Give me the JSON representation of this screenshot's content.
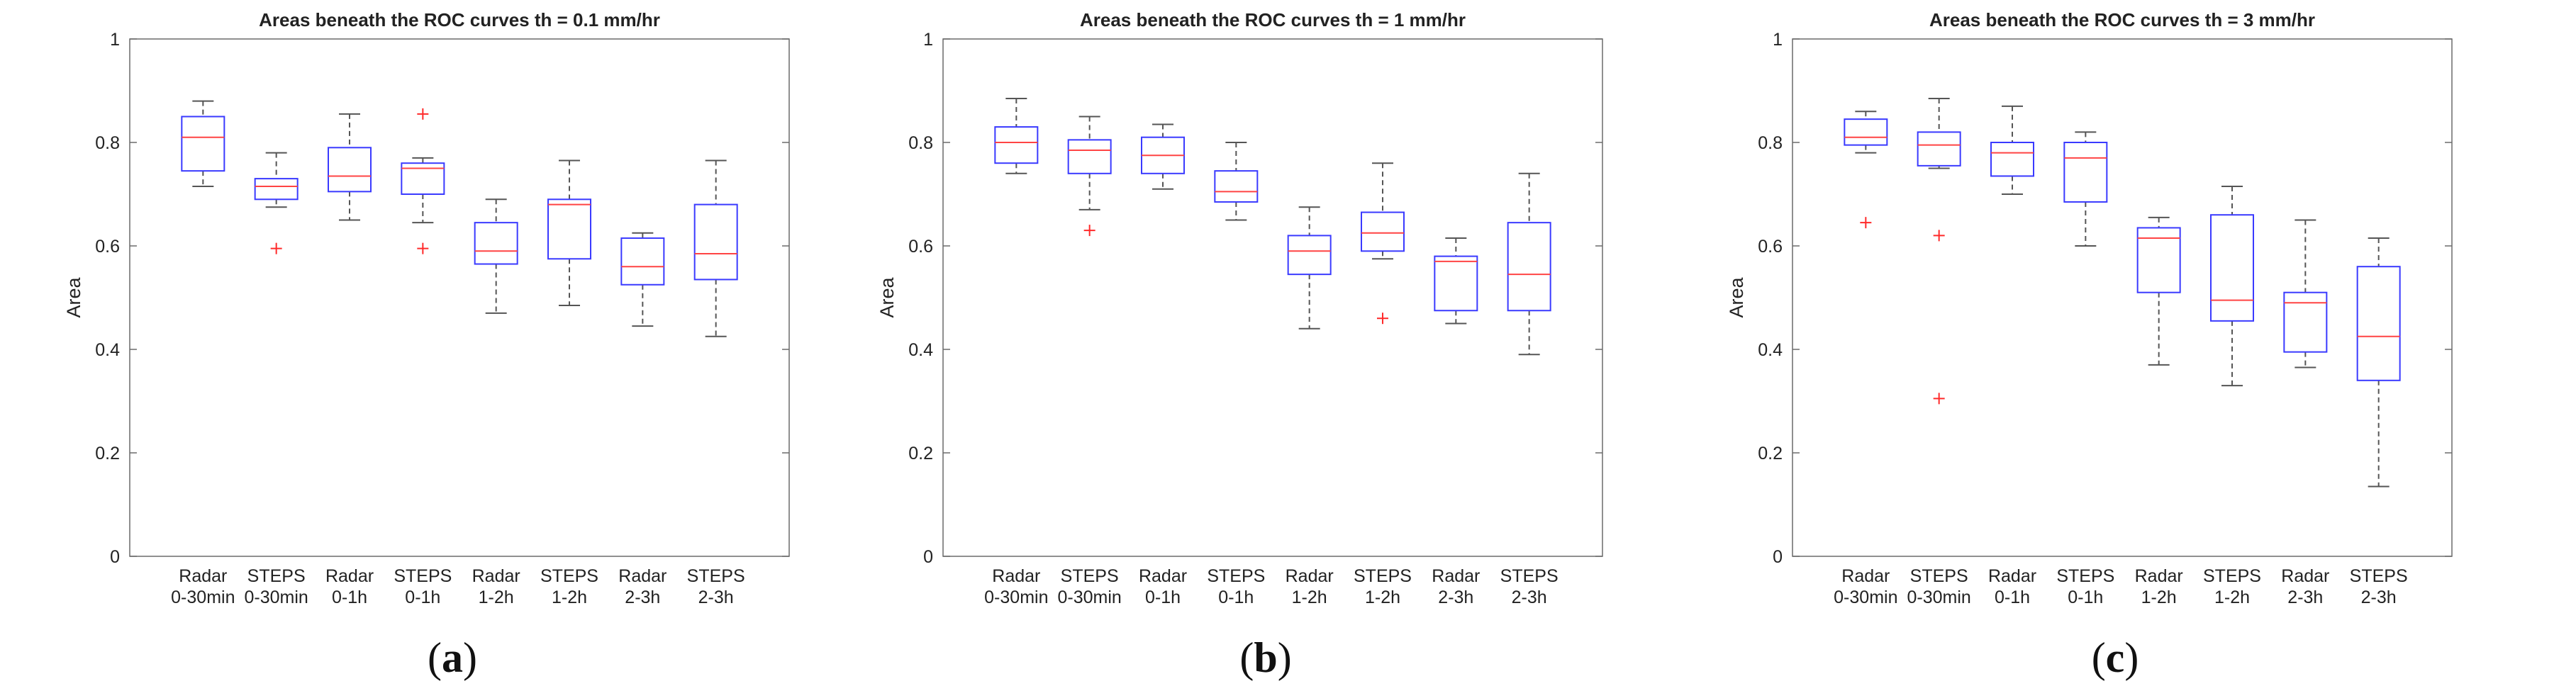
{
  "chart_data": [
    {
      "type": "boxplot",
      "panel_label": "a",
      "title": "Areas beneath the ROC curves th = 0.1 mm/hr",
      "ylabel": "Area",
      "ylim": [
        0,
        1
      ],
      "yticks": [
        "0",
        "0.2",
        "0.4",
        "0.6",
        "0.8",
        "1"
      ],
      "categories": [
        [
          "Radar",
          "0-30min"
        ],
        [
          "STEPS",
          "0-30min"
        ],
        [
          "Radar",
          "0-1h"
        ],
        [
          "STEPS",
          "0-1h"
        ],
        [
          "Radar",
          "1-2h"
        ],
        [
          "STEPS",
          "1-2h"
        ],
        [
          "Radar",
          "2-3h"
        ],
        [
          "STEPS",
          "2-3h"
        ]
      ],
      "boxes": [
        {
          "whisker_low": 0.715,
          "q1": 0.745,
          "median": 0.81,
          "q3": 0.85,
          "whisker_high": 0.88,
          "outliers": []
        },
        {
          "whisker_low": 0.675,
          "q1": 0.69,
          "median": 0.715,
          "q3": 0.73,
          "whisker_high": 0.78,
          "outliers": [
            0.595
          ]
        },
        {
          "whisker_low": 0.65,
          "q1": 0.705,
          "median": 0.735,
          "q3": 0.79,
          "whisker_high": 0.855,
          "outliers": []
        },
        {
          "whisker_low": 0.645,
          "q1": 0.7,
          "median": 0.75,
          "q3": 0.76,
          "whisker_high": 0.77,
          "outliers": [
            0.855,
            0.595
          ]
        },
        {
          "whisker_low": 0.47,
          "q1": 0.565,
          "median": 0.59,
          "q3": 0.645,
          "whisker_high": 0.69,
          "outliers": []
        },
        {
          "whisker_low": 0.485,
          "q1": 0.575,
          "median": 0.68,
          "q3": 0.69,
          "whisker_high": 0.765,
          "outliers": []
        },
        {
          "whisker_low": 0.445,
          "q1": 0.525,
          "median": 0.56,
          "q3": 0.615,
          "whisker_high": 0.625,
          "outliers": []
        },
        {
          "whisker_low": 0.425,
          "q1": 0.535,
          "median": 0.585,
          "q3": 0.68,
          "whisker_high": 0.765,
          "outliers": []
        }
      ]
    },
    {
      "type": "boxplot",
      "panel_label": "b",
      "title": "Areas beneath the ROC curves th = 1 mm/hr",
      "ylabel": "Area",
      "ylim": [
        0,
        1
      ],
      "yticks": [
        "0",
        "0.2",
        "0.4",
        "0.6",
        "0.8",
        "1"
      ],
      "categories": [
        [
          "Radar",
          "0-30min"
        ],
        [
          "STEPS",
          "0-30min"
        ],
        [
          "Radar",
          "0-1h"
        ],
        [
          "STEPS",
          "0-1h"
        ],
        [
          "Radar",
          "1-2h"
        ],
        [
          "STEPS",
          "1-2h"
        ],
        [
          "Radar",
          "2-3h"
        ],
        [
          "STEPS",
          "2-3h"
        ]
      ],
      "boxes": [
        {
          "whisker_low": 0.74,
          "q1": 0.76,
          "median": 0.8,
          "q3": 0.83,
          "whisker_high": 0.885,
          "outliers": []
        },
        {
          "whisker_low": 0.67,
          "q1": 0.74,
          "median": 0.785,
          "q3": 0.805,
          "whisker_high": 0.85,
          "outliers": [
            0.63
          ]
        },
        {
          "whisker_low": 0.71,
          "q1": 0.74,
          "median": 0.775,
          "q3": 0.81,
          "whisker_high": 0.835,
          "outliers": []
        },
        {
          "whisker_low": 0.65,
          "q1": 0.685,
          "median": 0.705,
          "q3": 0.745,
          "whisker_high": 0.8,
          "outliers": []
        },
        {
          "whisker_low": 0.44,
          "q1": 0.545,
          "median": 0.59,
          "q3": 0.62,
          "whisker_high": 0.675,
          "outliers": []
        },
        {
          "whisker_low": 0.575,
          "q1": 0.59,
          "median": 0.625,
          "q3": 0.665,
          "whisker_high": 0.76,
          "outliers": [
            0.46
          ]
        },
        {
          "whisker_low": 0.45,
          "q1": 0.475,
          "median": 0.57,
          "q3": 0.58,
          "whisker_high": 0.615,
          "outliers": []
        },
        {
          "whisker_low": 0.39,
          "q1": 0.475,
          "median": 0.545,
          "q3": 0.645,
          "whisker_high": 0.74,
          "outliers": []
        }
      ]
    },
    {
      "type": "boxplot",
      "panel_label": "c",
      "title": "Areas beneath the ROC curves th = 3 mm/hr",
      "ylabel": "Area",
      "ylim": [
        0,
        1
      ],
      "yticks": [
        "0",
        "0.2",
        "0.4",
        "0.6",
        "0.8",
        "1"
      ],
      "categories": [
        [
          "Radar",
          "0-30min"
        ],
        [
          "STEPS",
          "0-30min"
        ],
        [
          "Radar",
          "0-1h"
        ],
        [
          "STEPS",
          "0-1h"
        ],
        [
          "Radar",
          "1-2h"
        ],
        [
          "STEPS",
          "1-2h"
        ],
        [
          "Radar",
          "2-3h"
        ],
        [
          "STEPS",
          "2-3h"
        ]
      ],
      "boxes": [
        {
          "whisker_low": 0.78,
          "q1": 0.795,
          "median": 0.81,
          "q3": 0.845,
          "whisker_high": 0.86,
          "outliers": [
            0.645
          ]
        },
        {
          "whisker_low": 0.75,
          "q1": 0.755,
          "median": 0.795,
          "q3": 0.82,
          "whisker_high": 0.885,
          "outliers": [
            0.62,
            0.305
          ]
        },
        {
          "whisker_low": 0.7,
          "q1": 0.735,
          "median": 0.78,
          "q3": 0.8,
          "whisker_high": 0.87,
          "outliers": []
        },
        {
          "whisker_low": 0.6,
          "q1": 0.685,
          "median": 0.77,
          "q3": 0.8,
          "whisker_high": 0.82,
          "outliers": []
        },
        {
          "whisker_low": 0.37,
          "q1": 0.51,
          "median": 0.615,
          "q3": 0.635,
          "whisker_high": 0.655,
          "outliers": []
        },
        {
          "whisker_low": 0.33,
          "q1": 0.455,
          "median": 0.495,
          "q3": 0.66,
          "whisker_high": 0.715,
          "outliers": []
        },
        {
          "whisker_low": 0.365,
          "q1": 0.395,
          "median": 0.49,
          "q3": 0.51,
          "whisker_high": 0.65,
          "outliers": []
        },
        {
          "whisker_low": 0.135,
          "q1": 0.34,
          "median": 0.425,
          "q3": 0.56,
          "whisker_high": 0.615,
          "outliers": []
        }
      ]
    }
  ]
}
